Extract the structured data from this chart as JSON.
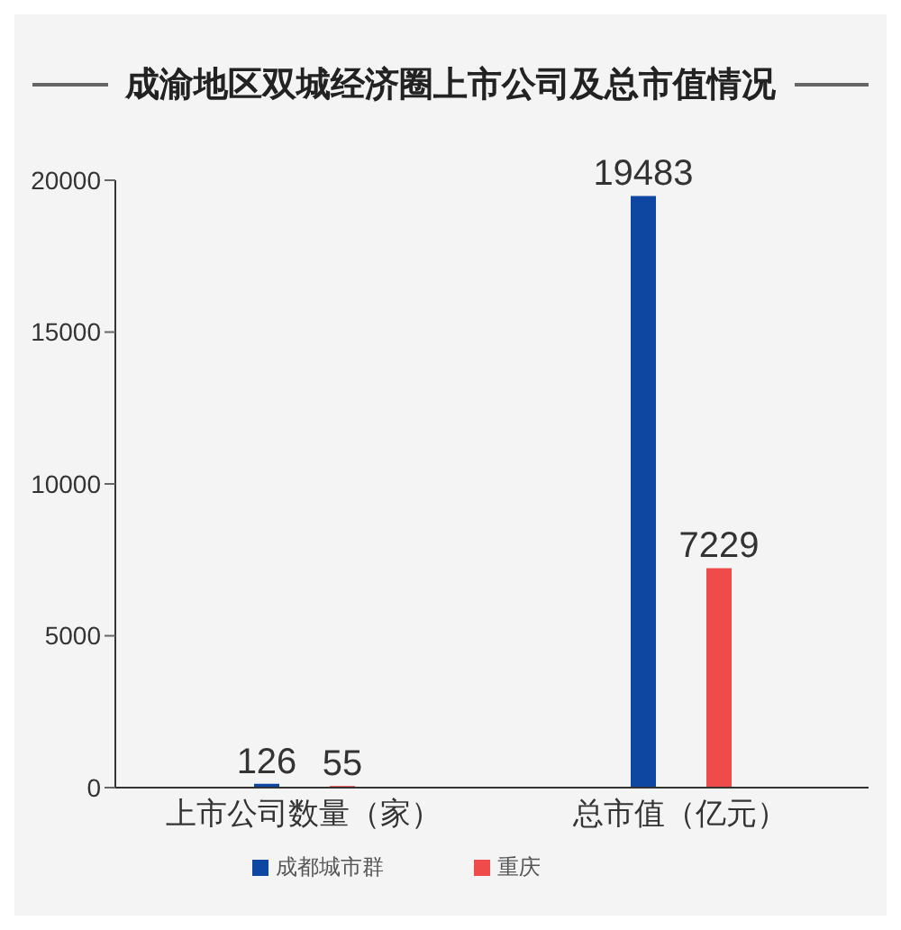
{
  "chart_data": {
    "type": "bar",
    "title": "成渝地区双城经济圈上市公司及总市值情况",
    "categories": [
      "上市公司数量（家）",
      "总市值（亿元）"
    ],
    "series": [
      {
        "name": "成都城市群",
        "color": "#0d47a1",
        "values": [
          126,
          19483
        ]
      },
      {
        "name": "重庆",
        "color": "#ef4b4b",
        "values": [
          55,
          7229
        ]
      }
    ],
    "ylim": [
      0,
      20000
    ],
    "yticks": [
      0,
      5000,
      10000,
      15000,
      20000
    ],
    "grid": false,
    "data_labels": true,
    "legend": "bottom"
  }
}
